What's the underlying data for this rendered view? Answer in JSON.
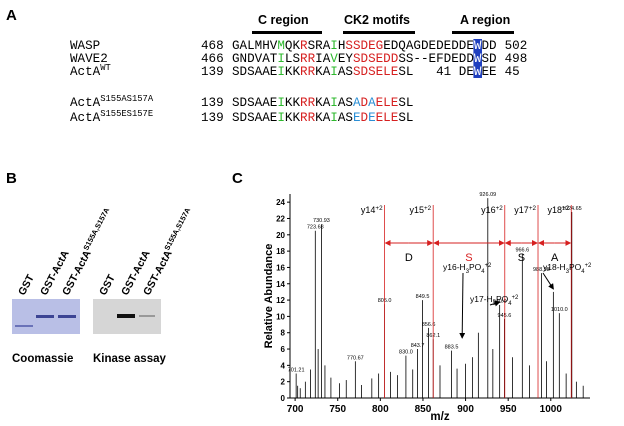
{
  "panels": {
    "a": "A",
    "b": "B",
    "c": "C"
  },
  "alignment": {
    "regions": [
      "C region",
      "CK2 motifs",
      "A region"
    ],
    "rows": [
      {
        "name": [
          {
            "text": "WASP"
          }
        ],
        "start": 468,
        "end": 502,
        "segments": [
          {
            "text": "GALMHV",
            "color": "#000000"
          },
          {
            "text": "M",
            "color": "#2eb82e"
          },
          {
            "text": "QK",
            "color": "#000000"
          },
          {
            "text": "R",
            "color": "#d62020"
          },
          {
            "text": "SRA",
            "color": "#000000"
          },
          {
            "text": "I",
            "color": "#2eb82e"
          },
          {
            "text": "H",
            "color": "#000000"
          },
          {
            "text": "SSDEG",
            "color": "#d62020"
          },
          {
            "text": "EDQAGDEDEDDE",
            "color": "#000000"
          },
          {
            "text": "W",
            "color": "#ffffff",
            "bg": "#1f3fbf"
          },
          {
            "text": "DD",
            "color": "#000000"
          }
        ]
      },
      {
        "name": [
          {
            "text": "WAVE2"
          }
        ],
        "start": 466,
        "end": 498,
        "segments": [
          {
            "text": "GNDVAT",
            "color": "#000000"
          },
          {
            "text": "I",
            "color": "#2eb82e"
          },
          {
            "text": "LS",
            "color": "#000000"
          },
          {
            "text": "RR",
            "color": "#d62020"
          },
          {
            "text": "IA",
            "color": "#000000"
          },
          {
            "text": "V",
            "color": "#2eb82e"
          },
          {
            "text": "EY",
            "color": "#000000"
          },
          {
            "text": "SDSEDD",
            "color": "#d62020"
          },
          {
            "text": "SS--EFDEDD",
            "color": "#000000"
          },
          {
            "text": "W",
            "color": "#ffffff",
            "bg": "#1f3fbf"
          },
          {
            "text": "SD",
            "color": "#000000"
          }
        ]
      },
      {
        "name": [
          {
            "text": "ActA"
          },
          {
            "text": "WT",
            "pos": "sup"
          }
        ],
        "start": 139,
        "end": 45,
        "segments": [
          {
            "text": "SDSAAE",
            "color": "#000000"
          },
          {
            "text": "I",
            "color": "#2eb82e"
          },
          {
            "text": "KK",
            "color": "#000000"
          },
          {
            "text": "RR",
            "color": "#d62020"
          },
          {
            "text": "KA",
            "color": "#000000"
          },
          {
            "text": "I",
            "color": "#2eb82e"
          },
          {
            "text": "AS",
            "color": "#000000"
          },
          {
            "text": "SDSELE",
            "color": "#d62020"
          },
          {
            "text": "SL   41 DE",
            "color": "#000000"
          },
          {
            "text": "W",
            "color": "#ffffff",
            "bg": "#1f3fbf"
          },
          {
            "text": "EE",
            "color": "#000000"
          }
        ]
      },
      {
        "name": [
          {
            "text": "ActA"
          },
          {
            "text": "S155AS157A",
            "pos": "sup"
          }
        ],
        "start": 139,
        "segments": [
          {
            "text": "SDSAAE",
            "color": "#000000"
          },
          {
            "text": "I",
            "color": "#2eb82e"
          },
          {
            "text": "KK",
            "color": "#000000"
          },
          {
            "text": "RR",
            "color": "#d62020"
          },
          {
            "text": "KA",
            "color": "#000000"
          },
          {
            "text": "I",
            "color": "#2eb82e"
          },
          {
            "text": "AS",
            "color": "#000000"
          },
          {
            "text": "A",
            "color": "#2a8fd6"
          },
          {
            "text": "D",
            "color": "#d62020"
          },
          {
            "text": "A",
            "color": "#2a8fd6"
          },
          {
            "text": "ELE",
            "color": "#d62020"
          },
          {
            "text": "SL",
            "color": "#000000"
          }
        ]
      },
      {
        "name": [
          {
            "text": "ActA"
          },
          {
            "text": "S155ES157E",
            "pos": "sup"
          }
        ],
        "start": 139,
        "segments": [
          {
            "text": "SDSAAE",
            "color": "#000000"
          },
          {
            "text": "I",
            "color": "#2eb82e"
          },
          {
            "text": "KK",
            "color": "#000000"
          },
          {
            "text": "RR",
            "color": "#d62020"
          },
          {
            "text": "KA",
            "color": "#000000"
          },
          {
            "text": "I",
            "color": "#2eb82e"
          },
          {
            "text": "AS",
            "color": "#000000"
          },
          {
            "text": "E",
            "color": "#2a8fd6"
          },
          {
            "text": "D",
            "color": "#d62020"
          },
          {
            "text": "E",
            "color": "#2a8fd6"
          },
          {
            "text": "ELE",
            "color": "#d62020"
          },
          {
            "text": "SL",
            "color": "#000000"
          }
        ]
      }
    ]
  },
  "gels": [
    {
      "caption": "Coomassie",
      "color": "#b9bfe6",
      "lanes": [
        [
          {
            "text": "GST"
          }
        ],
        [
          {
            "text": "GST-ActA"
          }
        ],
        [
          {
            "text": "GST-ActA"
          },
          {
            "text": "S155A,S157A",
            "pos": "sup"
          }
        ]
      ]
    },
    {
      "caption": "Kinase assay",
      "color": "#d6d6d6",
      "lanes": [
        [
          {
            "text": "GST"
          }
        ],
        [
          {
            "text": "GST-ActA"
          }
        ],
        [
          {
            "text": "GST-ActA"
          },
          {
            "text": "S155A,S157A",
            "pos": "sup"
          }
        ]
      ]
    }
  ],
  "chart_data": {
    "type": "spectrum",
    "color": "#000000",
    "xlabel": "m/z",
    "ylabel": "Relative Abundance",
    "xlim": [
      694,
      1046
    ],
    "xticks": [
      700,
      750,
      800,
      850,
      900,
      950,
      1000
    ],
    "ylim": [
      0,
      25
    ],
    "yticks": [
      0,
      2,
      4,
      6,
      8,
      10,
      12,
      14,
      16,
      18,
      20,
      22,
      24
    ],
    "x": [
      701.21,
      703,
      706,
      712,
      718,
      723.68,
      727,
      730.93,
      735,
      742,
      752,
      760,
      770.67,
      778,
      790,
      798,
      805.0,
      812,
      820,
      830.0,
      838,
      843.7,
      849.5,
      856.6,
      862.1,
      870,
      883.5,
      890,
      900,
      908,
      915,
      926.09,
      932,
      940.0,
      945.6,
      955,
      966.6,
      975,
      988.98,
      995,
      1003,
      1010.0,
      1018,
      1024.65,
      1030,
      1038
    ],
    "values": [
      3.0,
      1.5,
      1.2,
      2.0,
      3.5,
      20.5,
      6,
      21.3,
      4,
      2.5,
      1.8,
      2.2,
      4.5,
      1.6,
      2.4,
      3,
      11.5,
      3.2,
      2.8,
      5.2,
      3.5,
      6.0,
      12.0,
      8.6,
      7.2,
      4,
      5.8,
      3.6,
      4.2,
      5,
      8,
      24.5,
      6,
      11.4,
      9.7,
      5,
      17.7,
      4,
      15.3,
      4.5,
      13,
      10.4,
      3,
      22.8,
      2,
      1.5
    ],
    "x_labels": [
      "701.21",
      null,
      null,
      null,
      null,
      "723.68",
      null,
      "730.93",
      null,
      null,
      null,
      null,
      "770.67",
      null,
      null,
      null,
      "805.0",
      null,
      null,
      "830.0",
      null,
      "843.7",
      "849.5",
      "856.6",
      "862.1",
      null,
      "883.5",
      null,
      null,
      null,
      null,
      "926.09",
      null,
      "940.0",
      "945.6",
      null,
      "966.6",
      null,
      "988.98",
      null,
      null,
      "1010.0",
      null,
      "1024.65",
      null,
      null
    ],
    "fragment_color": "#d62020",
    "fragments": [
      {
        "x": 805,
        "label": [
          {
            "text": "y14"
          },
          {
            "text": "+2",
            "pos": "sup"
          }
        ]
      },
      {
        "x": 862,
        "label": [
          {
            "text": "y15"
          },
          {
            "text": "+2",
            "pos": "sup"
          }
        ]
      },
      {
        "x": 946,
        "label": [
          {
            "text": "y16"
          },
          {
            "text": "+2",
            "pos": "sup"
          }
        ]
      },
      {
        "x": 985,
        "label": [
          {
            "text": "y17"
          },
          {
            "text": "+2",
            "pos": "sup"
          }
        ]
      },
      {
        "x": 1024,
        "label": [
          {
            "text": "y18"
          },
          {
            "text": "+2",
            "pos": "sup"
          }
        ]
      }
    ],
    "residues": [
      "D",
      "S",
      "S",
      "A"
    ],
    "losses": [
      {
        "x": 896,
        "y": 7,
        "label": [
          {
            "text": "y16-H"
          },
          {
            "text": "3",
            "pos": "sub"
          },
          {
            "text": "PO"
          },
          {
            "text": "4",
            "pos": "sub"
          },
          {
            "text": "+2",
            "pos": "sup"
          }
        ]
      },
      {
        "x": 940,
        "y": 11.4,
        "label": [
          {
            "text": "y17-H"
          },
          {
            "text": "3",
            "pos": "sub"
          },
          {
            "text": "PO"
          },
          {
            "text": "4",
            "pos": "sub"
          },
          {
            "text": "+2",
            "pos": "sup"
          }
        ]
      },
      {
        "x": 1003,
        "y": 13,
        "label": [
          {
            "text": "y18-H"
          },
          {
            "text": "3",
            "pos": "sub"
          },
          {
            "text": "PO"
          },
          {
            "text": "4",
            "pos": "sub"
          },
          {
            "text": "+2",
            "pos": "sup"
          }
        ]
      }
    ]
  }
}
